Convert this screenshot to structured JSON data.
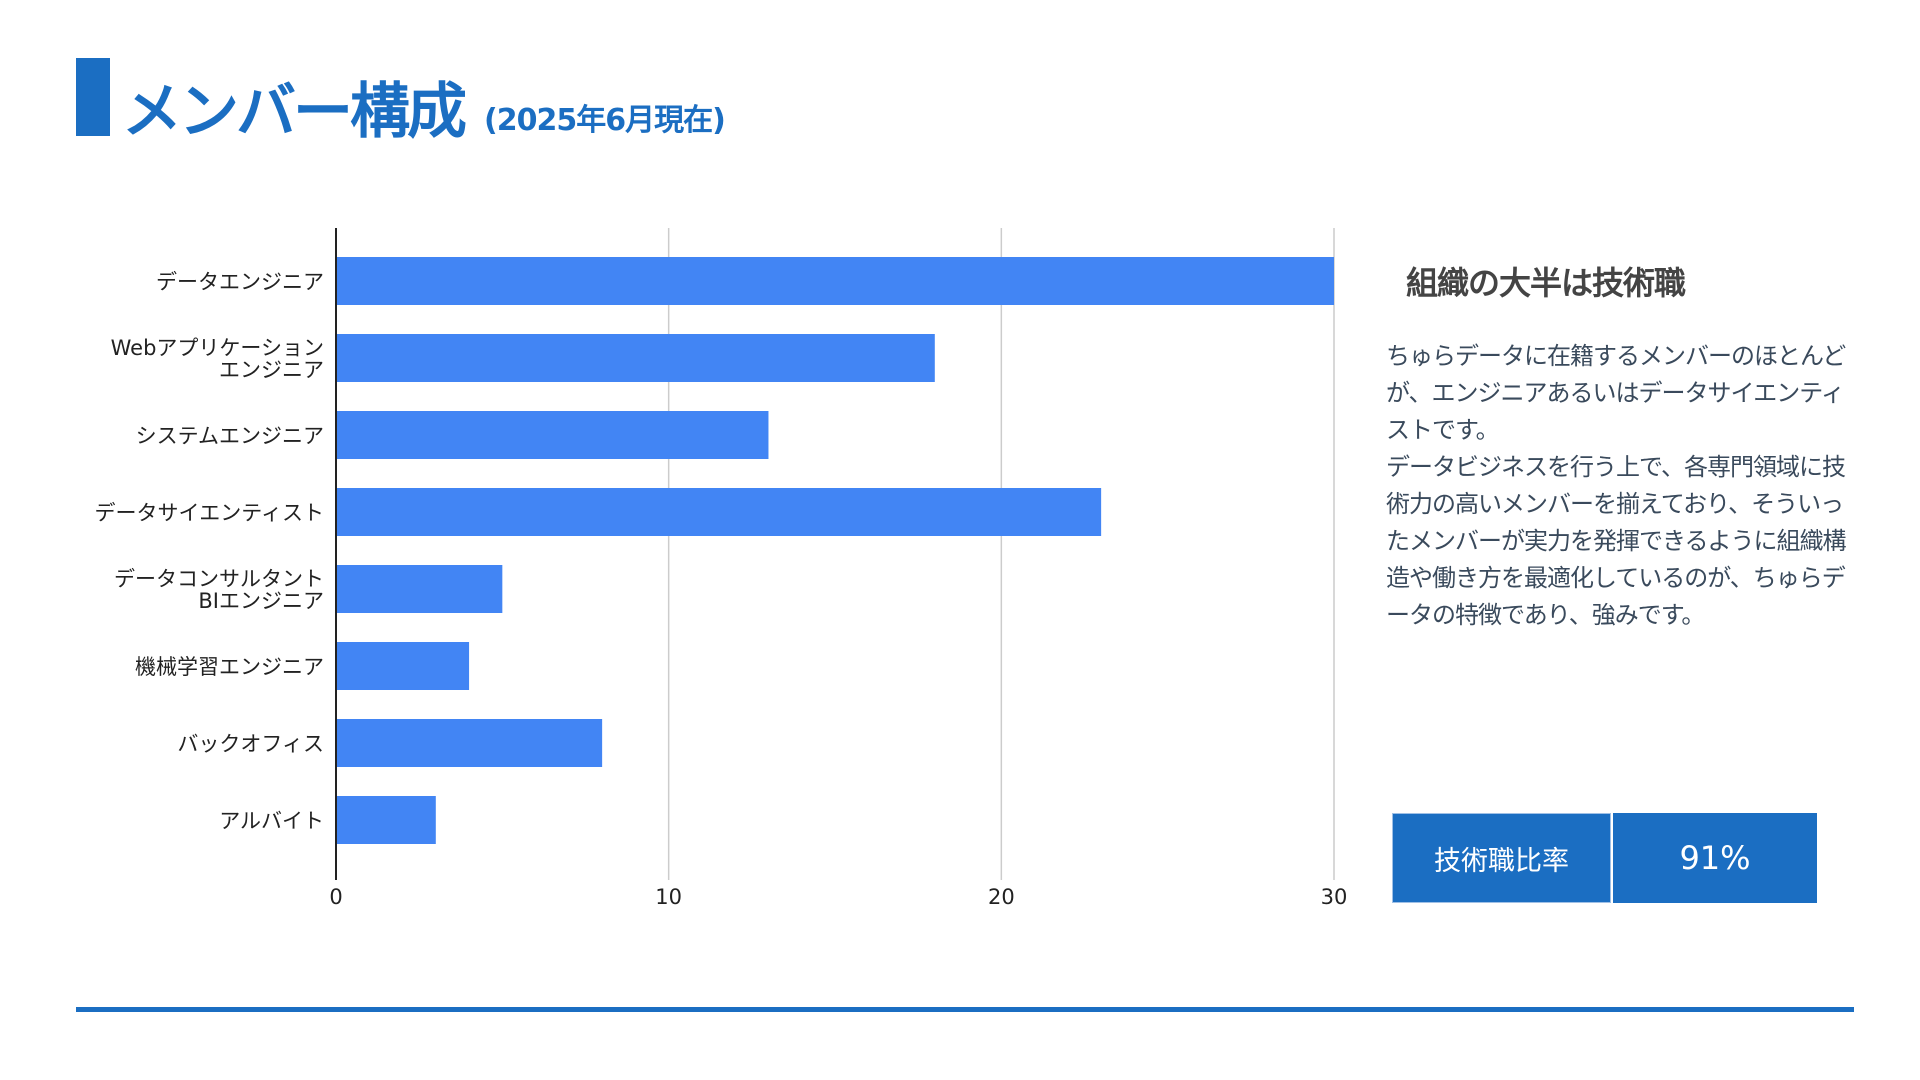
{
  "header": {
    "title": "メンバー構成",
    "subtitle": "(2025年6月現在)"
  },
  "chart_data": {
    "type": "bar",
    "orientation": "horizontal",
    "categories": [
      "データエンジニア",
      "Webアプリケーション\nエンジニア",
      "システムエンジニア",
      "データサイエンティスト",
      "データコンサルタント\nBIエンジニア",
      "機械学習エンジニア",
      "バックオフィス",
      "アルバイト"
    ],
    "values": [
      30,
      18,
      13,
      23,
      5,
      4,
      8,
      3
    ],
    "xlim": [
      0,
      30
    ],
    "xticks": [
      0,
      10,
      20,
      30
    ],
    "xlabel": "",
    "ylabel": "",
    "grid": true,
    "bar_color": "#4285f4"
  },
  "side": {
    "heading": "組織の大半は技術職",
    "paragraphs": [
      "ちゅらデータに在籍するメンバーのほとんどが、エンジニアあるいはデータサイエンティストです。",
      "データビジネスを行う上で、各専門領域に技術力の高いメンバーを揃えており、そういったメンバーが実力を発揮できるように組織構造や働き方を最適化しているのが、ちゅらデータの特徴であり、強みです。"
    ]
  },
  "kpi": {
    "label": "技術職比率",
    "value": "91%"
  },
  "colors": {
    "accent": "#1b6ec2",
    "bar": "#4285f4",
    "grid": "#cccccc"
  }
}
